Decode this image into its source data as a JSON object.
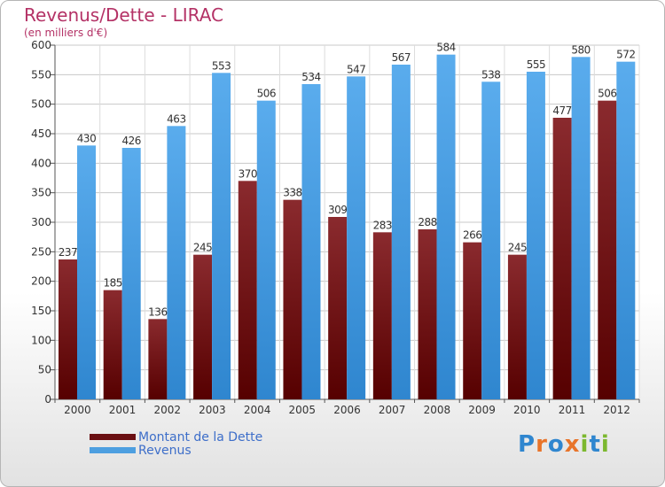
{
  "title": "Revenus/Dette - LIRAC",
  "subtitle": "(en milliers d'€)",
  "logo": {
    "text": "Proxiti"
  },
  "colors": {
    "debt": "#7a1a1f",
    "revenue": "#4d9fe0",
    "title": "#b43266"
  },
  "chart_data": {
    "type": "bar",
    "categories": [
      "2000",
      "2001",
      "2002",
      "2003",
      "2004",
      "2005",
      "2006",
      "2007",
      "2008",
      "2009",
      "2010",
      "2011",
      "2012"
    ],
    "series": [
      {
        "name": "Montant de la Dette",
        "values": [
          237,
          185,
          136,
          245,
          370,
          338,
          309,
          283,
          288,
          266,
          245,
          477,
          506
        ]
      },
      {
        "name": "Revenus",
        "values": [
          430,
          426,
          463,
          553,
          506,
          534,
          547,
          567,
          584,
          538,
          555,
          580,
          572
        ]
      }
    ],
    "ylim": [
      0,
      600
    ],
    "yticks": [
      0,
      50,
      100,
      150,
      200,
      250,
      300,
      350,
      400,
      450,
      500,
      550,
      600
    ],
    "grid": true,
    "legend": "bottom-left"
  }
}
